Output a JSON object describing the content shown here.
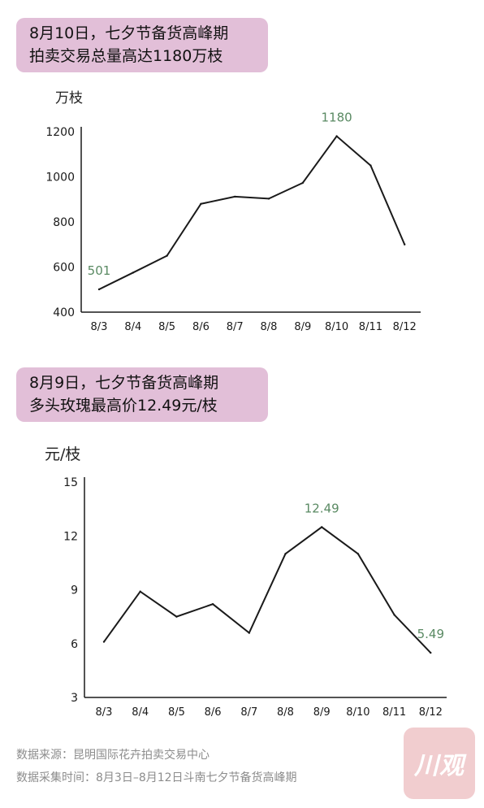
{
  "brand": {
    "logo_text": "川观",
    "logo_color": "#f1cdcf"
  },
  "title_color": "#e2bfd8",
  "label_color": "#5a8a63",
  "chart_data": [
    {
      "type": "line",
      "title_lines": [
        "8月10日，七夕节备货高峰期",
        "拍卖交易总量高达1180万枝"
      ],
      "ylabel": "万枝",
      "xlabel": "",
      "categories": [
        "8/3",
        "8/4",
        "8/5",
        "8/6",
        "8/7",
        "8/8",
        "8/9",
        "8/10",
        "8/11",
        "8/12"
      ],
      "values": [
        501,
        575,
        650,
        880,
        912,
        903,
        973,
        1180,
        1050,
        700
      ],
      "ylim": [
        400,
        1200
      ],
      "yticks": [
        "400",
        "600",
        "800",
        "1000",
        "1200"
      ],
      "annotations": [
        {
          "index": 0,
          "text": "501"
        },
        {
          "index": 7,
          "text": "1180"
        }
      ],
      "grid": false,
      "line_color": "#1a1a1a"
    },
    {
      "type": "line",
      "title_lines": [
        "8月9日，七夕节备货高峰期",
        "多头玫瑰最高价12.49元/枝"
      ],
      "ylabel": "元/枝",
      "xlabel": "",
      "categories": [
        "8/3",
        "8/4",
        "8/5",
        "8/6",
        "8/7",
        "8/8",
        "8/9",
        "8/10",
        "8/11",
        "8/12"
      ],
      "values": [
        6.1,
        8.9,
        7.5,
        8.2,
        6.6,
        11.0,
        12.49,
        11.0,
        7.6,
        5.49
      ],
      "ylim": [
        3,
        15
      ],
      "yticks": [
        "3",
        "6",
        "9",
        "12",
        "15"
      ],
      "annotations": [
        {
          "index": 6,
          "text": "12.49"
        },
        {
          "index": 9,
          "text": "5.49"
        }
      ],
      "grid": false,
      "line_color": "#1a1a1a"
    }
  ],
  "source_lines": [
    "数据来源：昆明国际花卉拍卖交易中心",
    "数据采集时间：8月3日–8月12日斗南七夕节备货高峰期"
  ]
}
